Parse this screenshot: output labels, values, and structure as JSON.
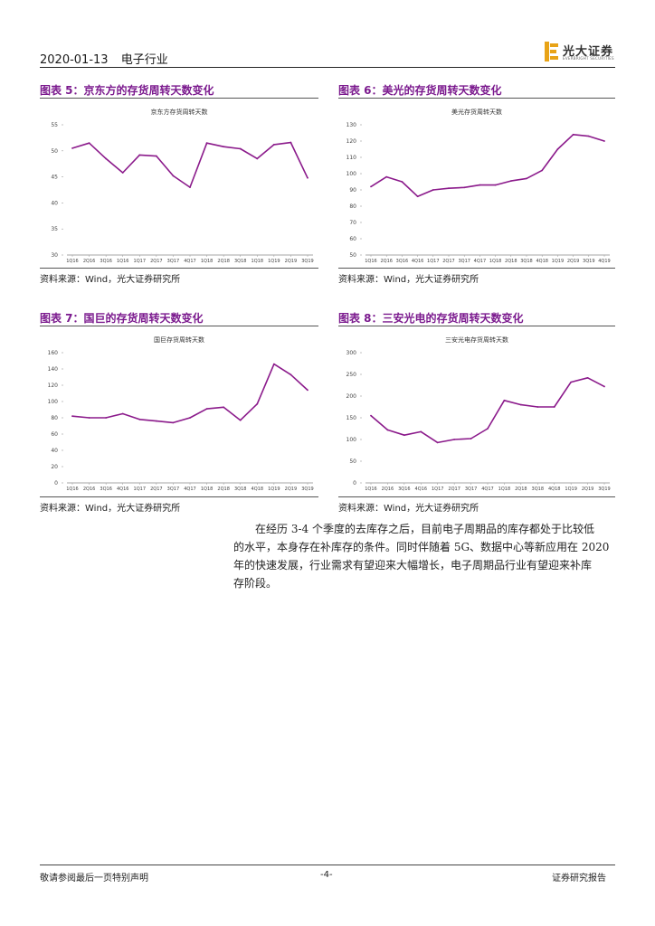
{
  "header": {
    "date": "2020-01-13",
    "industry": "电子行业",
    "logo_text": "光大证券",
    "logo_sub": "EVERBRIGHT SECURITIES"
  },
  "figures": [
    {
      "label": "图表 5：京东方的存货周转天数变化",
      "source": "资料来源：Wind，光大证券研究所"
    },
    {
      "label": "图表 6：美光的存货周转天数变化",
      "source": "资料来源：Wind，光大证券研究所"
    },
    {
      "label": "图表 7：国巨的存货周转天数变化",
      "source": "资料来源：Wind，光大证券研究所"
    },
    {
      "label": "图表 8：三安光电的存货周转天数变化",
      "source": "资料来源：Wind，光大证券研究所"
    }
  ],
  "chart_data": [
    {
      "type": "line",
      "title": "京东方存货周转天数",
      "categories": [
        "1Q16",
        "2Q16",
        "3Q16",
        "1Q16",
        "1Q17",
        "2Q17",
        "3Q17",
        "4Q17",
        "1Q18",
        "2Q18",
        "3Q18",
        "1Q18",
        "1Q19",
        "2Q19",
        "3Q19"
      ],
      "values": [
        50.5,
        51.5,
        48.5,
        45.8,
        49.2,
        49.0,
        45.2,
        43.0,
        51.5,
        50.8,
        50.4,
        48.5,
        51.2,
        51.6,
        44.8
      ],
      "ylim": [
        30,
        55
      ],
      "yticks": [
        30,
        35,
        40,
        45,
        50,
        55
      ],
      "color": "#8b1a8b"
    },
    {
      "type": "line",
      "title": "美光存货周转天数",
      "categories": [
        "1Q16",
        "2Q16",
        "3Q16",
        "4Q16",
        "1Q17",
        "2Q17",
        "3Q17",
        "4Q17",
        "1Q18",
        "2Q18",
        "3Q18",
        "4Q18",
        "1Q19",
        "2Q19",
        "3Q19",
        "4Q19"
      ],
      "values": [
        92,
        98,
        95,
        86,
        90,
        91,
        91.5,
        93,
        93,
        95.5,
        97,
        102,
        115,
        124,
        123,
        120
      ],
      "ylim": [
        50,
        130
      ],
      "yticks": [
        50,
        60,
        70,
        80,
        90,
        100,
        110,
        120,
        130
      ],
      "color": "#8b1a8b"
    },
    {
      "type": "line",
      "title": "国巨存货周转天数",
      "categories": [
        "1Q16",
        "2Q16",
        "3Q16",
        "4Q16",
        "1Q17",
        "2Q17",
        "3Q17",
        "4Q17",
        "1Q18",
        "2Q18",
        "3Q18",
        "4Q18",
        "1Q19",
        "2Q19",
        "3Q19"
      ],
      "values": [
        82,
        80,
        80,
        85,
        78,
        76,
        74,
        80,
        91,
        93,
        77,
        97,
        146,
        133,
        114
      ],
      "ylim": [
        0,
        160
      ],
      "yticks": [
        0,
        20,
        40,
        60,
        80,
        100,
        120,
        140,
        160
      ],
      "color": "#8b1a8b"
    },
    {
      "type": "line",
      "title": "三安光电存货周转天数",
      "categories": [
        "1Q16",
        "2Q16",
        "3Q16",
        "4Q16",
        "1Q17",
        "2Q17",
        "3Q17",
        "4Q17",
        "1Q18",
        "2Q18",
        "3Q18",
        "4Q18",
        "1Q19",
        "2Q19",
        "3Q19"
      ],
      "values": [
        155,
        122,
        110,
        118,
        93,
        100,
        102,
        125,
        190,
        180,
        175,
        175,
        232,
        242,
        222
      ],
      "ylim": [
        0,
        300
      ],
      "yticks": [
        0,
        50,
        100,
        150,
        200,
        250,
        300
      ],
      "color": "#8b1a8b"
    }
  ],
  "paragraph": [
    "在经历 3-4 个季度的去库存之后，目前电子周期品的库存都处于比较低",
    "的水平，本身存在补库存的条件。同时伴随着 5G、数据中心等新应用在 2020",
    "年的快速发展，行业需求有望迎来大幅增长，电子周期品行业有望迎来补库",
    "存阶段。"
  ],
  "footer": {
    "left": "敬请参阅最后一页特别声明",
    "page": "-4-",
    "right": "证券研究报告"
  }
}
